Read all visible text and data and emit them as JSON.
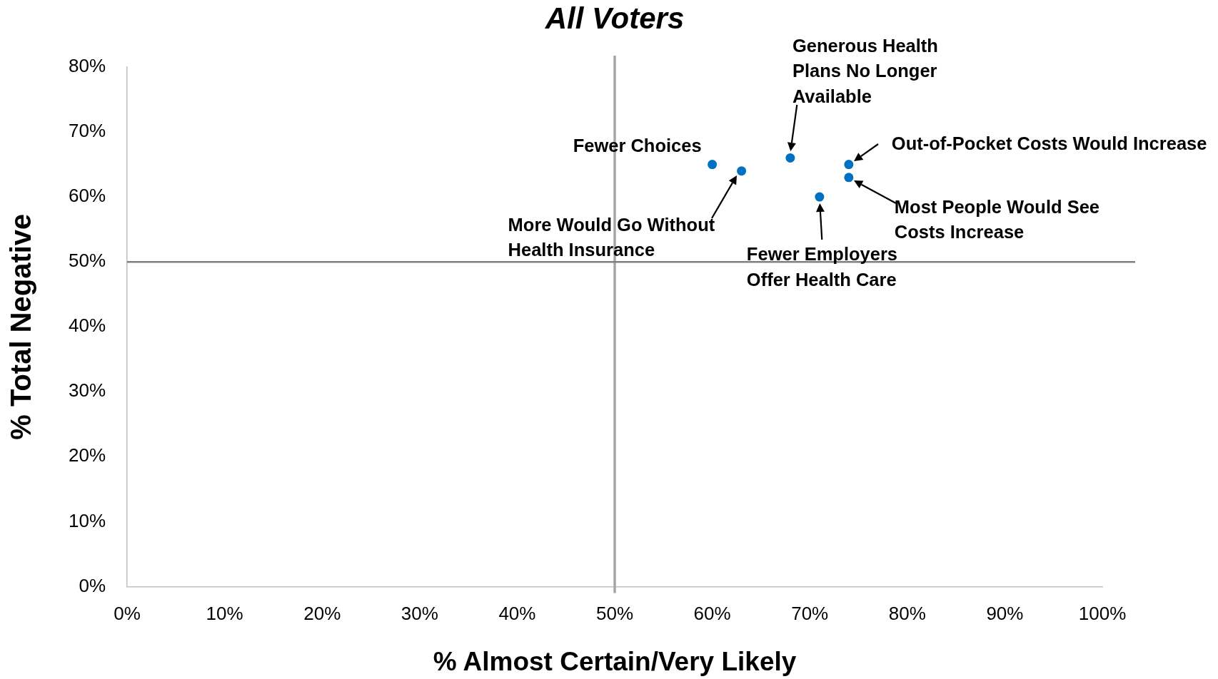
{
  "chart_data": {
    "type": "scatter",
    "title": "All Voters",
    "xlabel": "% Almost Certain/Very Likely",
    "ylabel": "% Total Negative",
    "x": [
      60,
      63,
      68,
      74,
      74,
      71
    ],
    "values": [
      65,
      64,
      66,
      65,
      63,
      60
    ],
    "color": "#0070c0",
    "marker": "circle",
    "xlim": [
      0,
      100
    ],
    "ylim": [
      0,
      80
    ],
    "xticks": [
      {
        "value": 0,
        "label": "0%"
      },
      {
        "value": 10,
        "label": "10%"
      },
      {
        "value": 20,
        "label": "20%"
      },
      {
        "value": 30,
        "label": "30%"
      },
      {
        "value": 40,
        "label": "40%"
      },
      {
        "value": 50,
        "label": "50%"
      },
      {
        "value": 60,
        "label": "60%"
      },
      {
        "value": 70,
        "label": "70%"
      },
      {
        "value": 80,
        "label": "80%"
      },
      {
        "value": 90,
        "label": "90%"
      },
      {
        "value": 100,
        "label": "100%"
      }
    ],
    "yticks": [
      {
        "value": 0,
        "label": "0%"
      },
      {
        "value": 10,
        "label": "10%"
      },
      {
        "value": 20,
        "label": "20%"
      },
      {
        "value": 30,
        "label": "30%"
      },
      {
        "value": 40,
        "label": "40%"
      },
      {
        "value": 50,
        "label": "50%"
      },
      {
        "value": 60,
        "label": "60%"
      },
      {
        "value": 70,
        "label": "70%"
      },
      {
        "value": 80,
        "label": "80%"
      }
    ],
    "ref_lines": [
      {
        "axis": "x",
        "value": 50,
        "color": "#a6a6a6"
      },
      {
        "axis": "y",
        "value": 50,
        "color": "#7f7f7f"
      }
    ],
    "annotations": [
      {
        "text": "Fewer Choices",
        "x": 60,
        "y": 65
      },
      {
        "text": "More Would Go Without\nHealth Insurance",
        "x": 63,
        "y": 64
      },
      {
        "text": "Generous Health\nPlans No Longer\nAvailable",
        "x": 68,
        "y": 66
      },
      {
        "text": "Out-of-Pocket Costs Would Increase",
        "x": 74,
        "y": 65
      },
      {
        "text": "Most People Would See\nCosts Increase",
        "x": 74,
        "y": 63
      },
      {
        "text": "Fewer Employers\nOffer Health Care",
        "x": 71,
        "y": 60
      }
    ]
  }
}
